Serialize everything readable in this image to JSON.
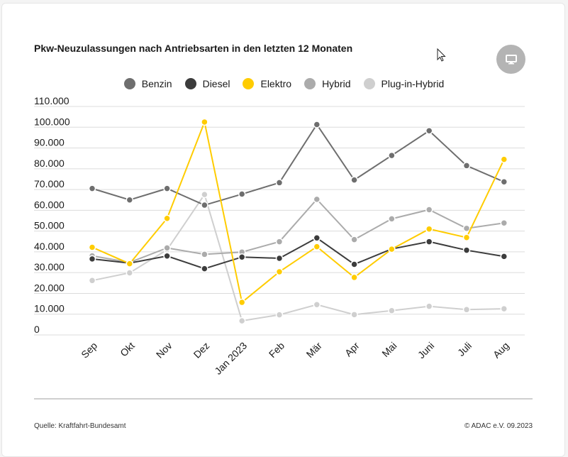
{
  "chart_title": "Pkw-Neuzulassungen nach Antriebsarten in den letzten 12 Monaten",
  "source": "Quelle: Kraftfahrt-Bundesamt",
  "copyright": "© ADAC e.V. 09.2023",
  "icons": {
    "fullscreen": "monitor-icon",
    "cursor": "mouse-pointer-icon"
  },
  "chart_data": {
    "type": "line",
    "title": "Pkw-Neuzulassungen nach Antriebsarten in den letzten 12 Monaten",
    "legend_position": "top-center",
    "grid": true,
    "ylim": [
      0,
      110000
    ],
    "y_ticks": [
      0,
      10000,
      20000,
      30000,
      40000,
      50000,
      60000,
      70000,
      80000,
      90000,
      100000,
      110000
    ],
    "y_tick_labels": [
      "0",
      "10.000",
      "20.000",
      "30.000",
      "40.000",
      "50.000",
      "60.000",
      "70.000",
      "80.000",
      "90.000",
      "100.000",
      "110.000"
    ],
    "categories": [
      "Sep",
      "Okt",
      "Nov",
      "Dez",
      "Jan 2023",
      "Feb",
      "Mär",
      "Apr",
      "Mai",
      "Juni",
      "Juli",
      "Aug"
    ],
    "series": [
      {
        "name": "Benzin",
        "color": "#6e6e6e",
        "values": [
          70500,
          65000,
          70500,
          62500,
          67800,
          73300,
          101300,
          74600,
          86400,
          98300,
          81500,
          73700
        ]
      },
      {
        "name": "Diesel",
        "color": "#3c3c3c",
        "values": [
          36600,
          34600,
          38000,
          31900,
          37500,
          36900,
          46700,
          34000,
          41400,
          44900,
          40800,
          37800
        ]
      },
      {
        "name": "Elektro",
        "color": "#ffcc00",
        "values": [
          42200,
          34300,
          56100,
          102500,
          15700,
          30400,
          42500,
          27700,
          41300,
          51000,
          46900,
          84500
        ]
      },
      {
        "name": "Hybrid",
        "color": "#ababab",
        "values": [
          38100,
          34900,
          41900,
          38800,
          39900,
          44900,
          65300,
          45900,
          55900,
          60300,
          51300,
          53900
        ]
      },
      {
        "name": "Plug-in-Hybrid",
        "color": "#cfcfcf",
        "values": [
          26200,
          29900,
          41000,
          67600,
          6800,
          9700,
          14600,
          9800,
          11700,
          13800,
          12200,
          12600
        ]
      }
    ]
  }
}
